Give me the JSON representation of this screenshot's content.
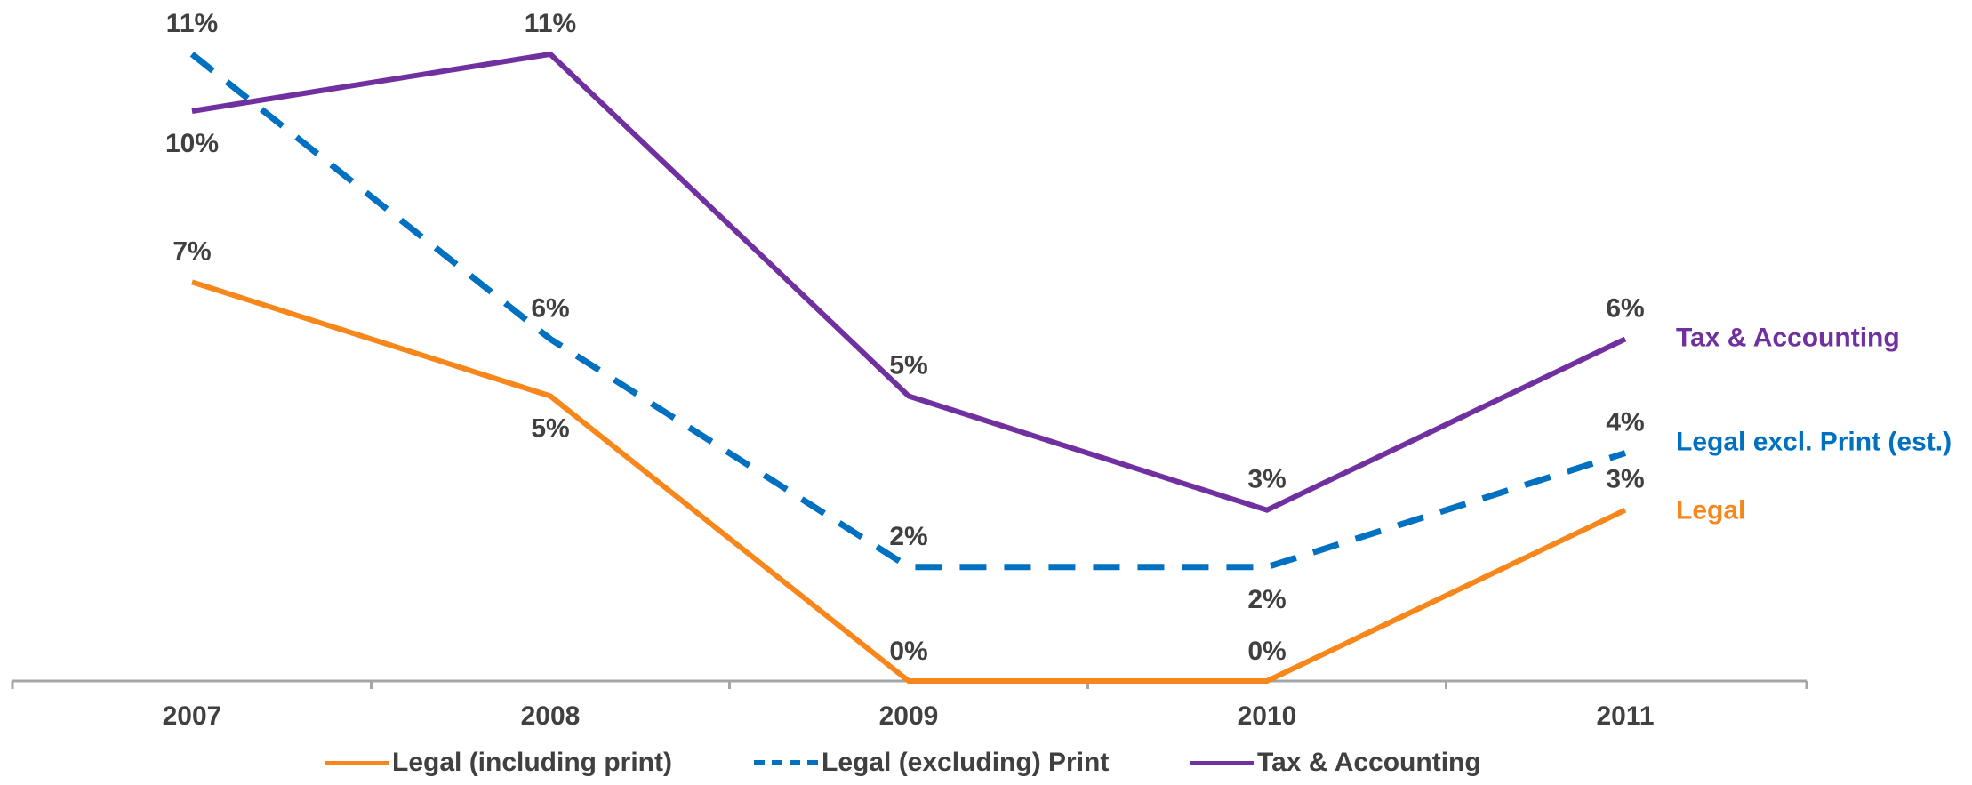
{
  "chart_data": {
    "type": "line",
    "categories": [
      "2007",
      "2008",
      "2009",
      "2010",
      "2011"
    ],
    "ylim": [
      0,
      12
    ],
    "grid": false,
    "legend_position": "bottom",
    "series": [
      {
        "name": "Legal (including print)",
        "end_label": "Legal",
        "values": [
          7,
          5,
          0,
          0,
          3
        ],
        "data_labels": [
          "7%",
          "5%",
          "0%",
          "0%",
          "3%"
        ],
        "color": "#F7861B",
        "style": "solid"
      },
      {
        "name": "Legal (excluding) Print",
        "end_label": "Legal excl. Print (est.)",
        "values": [
          11,
          6,
          2,
          2,
          4
        ],
        "data_labels": [
          "11%",
          "6%",
          "2%",
          "2%",
          "4%"
        ],
        "color": "#0070C0",
        "style": "dashed"
      },
      {
        "name": "Tax & Accounting",
        "end_label": "Tax & Accounting",
        "values": [
          10,
          11,
          5,
          3,
          6
        ],
        "data_labels": [
          "10%",
          "11%",
          "5%",
          "3%",
          "6%"
        ],
        "color": "#7030A0",
        "style": "solid"
      }
    ],
    "axis_color": "#A6A6A6",
    "label_color": "#404040"
  }
}
